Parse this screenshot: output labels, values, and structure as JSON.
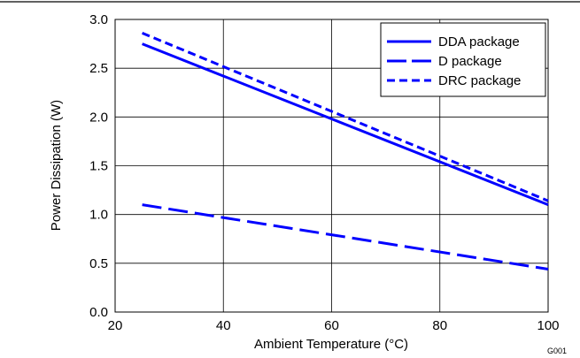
{
  "chart_data": {
    "type": "line",
    "title": "",
    "xlabel": "Ambient Temperature (°C)",
    "ylabel": "Power Dissipation (W)",
    "xlim": [
      20,
      100
    ],
    "ylim": [
      0,
      3.0
    ],
    "x_ticks": [
      20,
      40,
      60,
      80,
      100
    ],
    "y_ticks": [
      0,
      0.5,
      1.0,
      1.5,
      2.0,
      2.5,
      3.0
    ],
    "x_tick_labels": [
      "20",
      "40",
      "60",
      "80",
      "100"
    ],
    "y_tick_labels": [
      "0.0",
      "0.5",
      "1.0",
      "1.5",
      "2.0",
      "2.5",
      "3.0"
    ],
    "grid": true,
    "legend_position": "top-right",
    "series": [
      {
        "name": "DDA package",
        "style": "solid",
        "color": "#0000ff",
        "x": [
          25,
          100
        ],
        "y": [
          2.75,
          1.1
        ]
      },
      {
        "name": "D package",
        "style": "long-dash",
        "color": "#0000ff",
        "x": [
          25,
          100
        ],
        "y": [
          1.1,
          0.44
        ]
      },
      {
        "name": "DRC package",
        "style": "short-dash",
        "color": "#0000ff",
        "x": [
          25,
          100
        ],
        "y": [
          2.86,
          1.14
        ]
      }
    ],
    "figure_id": "G001"
  }
}
